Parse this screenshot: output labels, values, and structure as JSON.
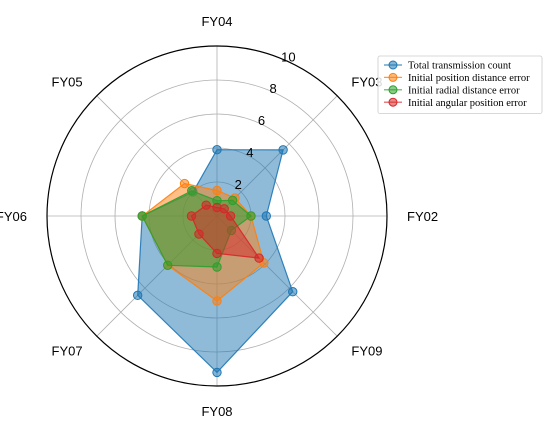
{
  "chart_data": {
    "type": "radar",
    "categories": [
      "FY02",
      "FY03",
      "FY04",
      "FY05",
      "FY06",
      "FY07",
      "FY08",
      "FY09"
    ],
    "rlim": [
      0,
      10
    ],
    "r_ticks": [
      "2",
      "4",
      "6",
      "8",
      "10"
    ],
    "grid": true,
    "legend_position": "top-right",
    "series": [
      {
        "name": "Total transmission count",
        "color": "#1f77b4",
        "values": [
          2.9,
          5.5,
          3.9,
          2.0,
          4.4,
          6.6,
          9.2,
          6.3
        ]
      },
      {
        "name": "Initial position distance error",
        "color": "#ff7f0e",
        "values": [
          2.0,
          1.5,
          1.5,
          2.7,
          4.4,
          4.1,
          5.0,
          3.9
        ]
      },
      {
        "name": "Initial radial distance error",
        "color": "#2ca02c",
        "values": [
          2.0,
          1.3,
          0.9,
          2.1,
          4.4,
          4.1,
          3.0,
          1.2
        ]
      },
      {
        "name": "Initial angular position error",
        "color": "#d62728",
        "values": [
          0.8,
          0.6,
          0.5,
          0.9,
          1.5,
          1.5,
          2.2,
          3.5
        ]
      }
    ]
  }
}
